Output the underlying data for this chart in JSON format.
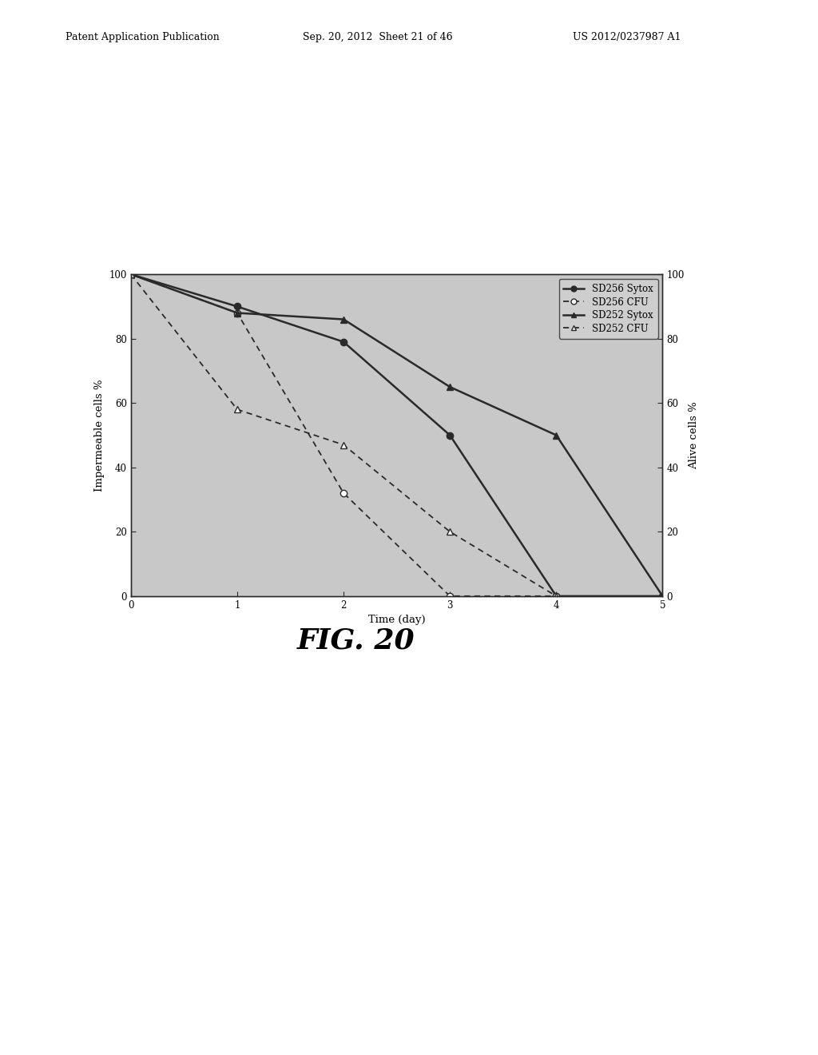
{
  "sd256_sytox_x": [
    0,
    1,
    2,
    3,
    4,
    5
  ],
  "sd256_sytox_y": [
    100,
    90,
    79,
    50,
    0,
    0
  ],
  "sd256_cfu_x": [
    0,
    1,
    2,
    3,
    4
  ],
  "sd256_cfu_y": [
    100,
    88,
    32,
    0,
    0
  ],
  "sd252_sytox_x": [
    0,
    1,
    2,
    3,
    4,
    5
  ],
  "sd252_sytox_y": [
    100,
    88,
    86,
    65,
    50,
    0
  ],
  "sd252_cfu_x": [
    0,
    1,
    2,
    3,
    4
  ],
  "sd252_cfu_y": [
    100,
    58,
    47,
    20,
    0
  ],
  "xlabel": "Time (day)",
  "ylabel_left": "Impermeable cells %",
  "ylabel_right": "Alive cells %",
  "fig_label": "FIG. 20",
  "header_left": "Patent Application Publication",
  "header_center": "Sep. 20, 2012  Sheet 21 of 46",
  "header_right": "US 2012/0237987 A1",
  "xlim": [
    0,
    5
  ],
  "ylim": [
    0,
    100
  ],
  "xticks": [
    0,
    1,
    2,
    3,
    4,
    5
  ],
  "yticks": [
    0,
    20,
    40,
    60,
    80,
    100
  ],
  "line_color": "#2a2a2a",
  "bg_color": "#c8c8c8",
  "fig_bg_color": "#ffffff"
}
